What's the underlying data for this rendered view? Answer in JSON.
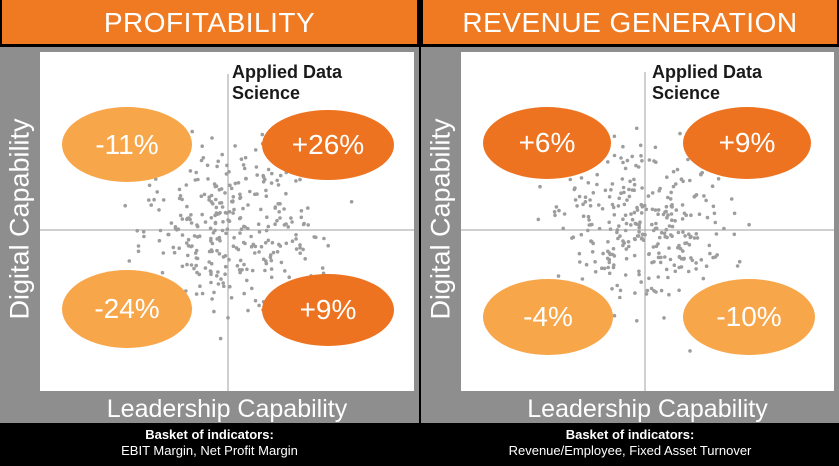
{
  "left": {
    "banner": "PROFITABILITY",
    "y_axis": "Digital Capability",
    "x_axis": "Leadership Capability",
    "quadrant_title": "Applied Data Science",
    "values": {
      "top_left": "-11%",
      "top_right": "+26%",
      "bottom_left": "-24%",
      "bottom_right": "+9%"
    },
    "basket_title": "Basket of indicators:",
    "basket_items": "EBIT Margin,  Net Profit Margin"
  },
  "right": {
    "banner": "REVENUE GENERATION",
    "y_axis": "Digital Capability",
    "x_axis": "Leadership Capability",
    "quadrant_title": "Applied Data Science",
    "values": {
      "top_left": "+6%",
      "top_right": "+9%",
      "bottom_left": "-4%",
      "bottom_right": "-10%"
    },
    "basket_title": "Basket of indicators:",
    "basket_items": "Revenue/Employee, Fixed Asset Turnover"
  },
  "colors": {
    "banner": "#f07a22",
    "highlight": "#ed7320",
    "muted": "#f7a64a",
    "frame": "#8e8e8e"
  }
}
